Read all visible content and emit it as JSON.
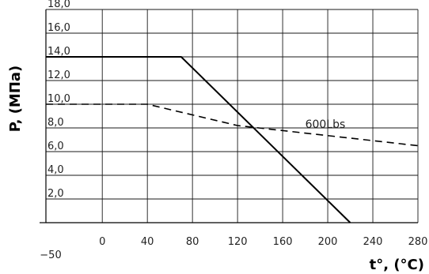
{
  "chart_data": {
    "type": "line",
    "xlabel": "t°, (°C)",
    "ylabel": "P, (МПа)",
    "x_ticks": [
      -50,
      0,
      40,
      80,
      120,
      160,
      200,
      240,
      280
    ],
    "x_tick_labels": [
      "−50",
      "0",
      "40",
      "80",
      "120",
      "160",
      "200",
      "240",
      "280"
    ],
    "y_ticks": [
      2.0,
      4.0,
      6.0,
      8.0,
      10.0,
      12.0,
      14.0,
      16.0,
      18.0
    ],
    "y_tick_labels": [
      "2,0",
      "4,0",
      "6,0",
      "8,0",
      "10,0",
      "12,0",
      "14,0",
      "16,0",
      "18,0"
    ],
    "xlim": [
      -50,
      280
    ],
    "ylim": [
      0,
      18
    ],
    "grid": true,
    "series": [
      {
        "style": "solid",
        "points": [
          [
            -50,
            14.0
          ],
          [
            70,
            14.0
          ],
          [
            220,
            0.0
          ]
        ]
      },
      {
        "name": "600Lbs",
        "style": "dashed",
        "points": [
          [
            -50,
            10.0
          ],
          [
            40,
            10.0
          ],
          [
            120,
            8.2
          ],
          [
            280,
            6.5
          ]
        ]
      }
    ]
  }
}
